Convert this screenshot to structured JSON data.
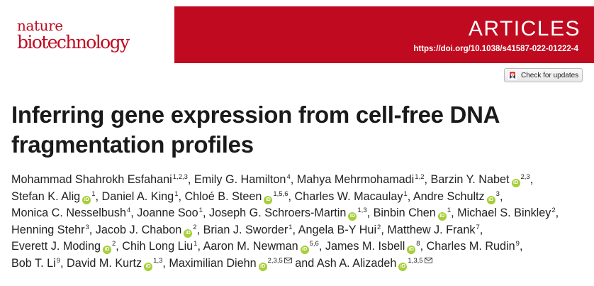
{
  "journal": {
    "logo_line1": "nature",
    "logo_line2": "biotechnology",
    "section": "ARTICLES",
    "doi": "https://doi.org/10.1038/s41587-022-01222-4",
    "brand_color": "#c00a1f"
  },
  "check_updates": {
    "label": "Check for updates",
    "icon": "crossmark-icon"
  },
  "title_line1": "Inferring gene expression from cell-free DNA",
  "title_line2": "fragmentation profiles",
  "authors_lines": [
    [
      {
        "name": "Mohammad Shahrokh Esfahani",
        "aff": "1,2,3",
        "orcid": false,
        "email": false,
        "sep": ","
      },
      {
        "name": "Emily G. Hamilton",
        "aff": "4",
        "orcid": false,
        "email": false,
        "sep": ","
      },
      {
        "name": "Mahya Mehrmohamadi",
        "aff": "1,2",
        "orcid": false,
        "email": false,
        "sep": ","
      },
      {
        "name": "Barzin Y. Nabet",
        "aff": "2,3",
        "orcid": true,
        "email": false,
        "sep": ","
      }
    ],
    [
      {
        "name": "Stefan K. Alig",
        "aff": "1",
        "orcid": true,
        "email": false,
        "sep": ","
      },
      {
        "name": "Daniel A. King",
        "aff": "1",
        "orcid": false,
        "email": false,
        "sep": ","
      },
      {
        "name": "Chloé B. Steen",
        "aff": "1,5,6",
        "orcid": true,
        "email": false,
        "sep": ","
      },
      {
        "name": "Charles W. Macaulay",
        "aff": "1",
        "orcid": false,
        "email": false,
        "sep": ","
      },
      {
        "name": "Andre Schultz",
        "aff": "3",
        "orcid": true,
        "email": false,
        "sep": ","
      }
    ],
    [
      {
        "name": "Monica C. Nesselbush",
        "aff": "4",
        "orcid": false,
        "email": false,
        "sep": ","
      },
      {
        "name": "Joanne Soo",
        "aff": "1",
        "orcid": false,
        "email": false,
        "sep": ","
      },
      {
        "name": "Joseph G. Schroers-Martin",
        "aff": "1,3",
        "orcid": true,
        "email": false,
        "sep": ","
      },
      {
        "name": "Binbin Chen",
        "aff": "1",
        "orcid": true,
        "email": false,
        "sep": ","
      },
      {
        "name": "Michael S. Binkley",
        "aff": "2",
        "orcid": false,
        "email": false,
        "sep": ","
      }
    ],
    [
      {
        "name": "Henning Stehr",
        "aff": "3",
        "orcid": false,
        "email": false,
        "sep": ","
      },
      {
        "name": "Jacob J. Chabon",
        "aff": "2",
        "orcid": true,
        "email": false,
        "sep": ","
      },
      {
        "name": "Brian J. Sworder",
        "aff": "1",
        "orcid": false,
        "email": false,
        "sep": ","
      },
      {
        "name": "Angela B-Y Hui",
        "aff": "2",
        "orcid": false,
        "email": false,
        "sep": ","
      },
      {
        "name": "Matthew J. Frank",
        "aff": "7",
        "orcid": false,
        "email": false,
        "sep": ","
      }
    ],
    [
      {
        "name": "Everett J. Moding",
        "aff": "2",
        "orcid": true,
        "email": false,
        "sep": ","
      },
      {
        "name": "Chih Long Liu",
        "aff": "1",
        "orcid": false,
        "email": false,
        "sep": ","
      },
      {
        "name": "Aaron M. Newman",
        "aff": "5,6",
        "orcid": true,
        "email": false,
        "sep": ","
      },
      {
        "name": "James M. Isbell",
        "aff": "8",
        "orcid": true,
        "email": false,
        "sep": ","
      },
      {
        "name": "Charles M. Rudin",
        "aff": "9",
        "orcid": false,
        "email": false,
        "sep": ","
      }
    ],
    [
      {
        "name": "Bob T. Li",
        "aff": "9",
        "orcid": false,
        "email": false,
        "sep": ","
      },
      {
        "name": "David M. Kurtz",
        "aff": "1,3",
        "orcid": true,
        "email": false,
        "sep": ","
      },
      {
        "name": "Maximilian Diehn",
        "aff": "2,3,5",
        "orcid": true,
        "email": true,
        "sep": " and"
      },
      {
        "name": "Ash A. Alizadeh",
        "aff": "1,3,5",
        "orcid": true,
        "email": true,
        "sep": ""
      }
    ]
  ],
  "colors": {
    "orcid_green": "#a6ce39",
    "title_text": "#1a1a1a"
  }
}
